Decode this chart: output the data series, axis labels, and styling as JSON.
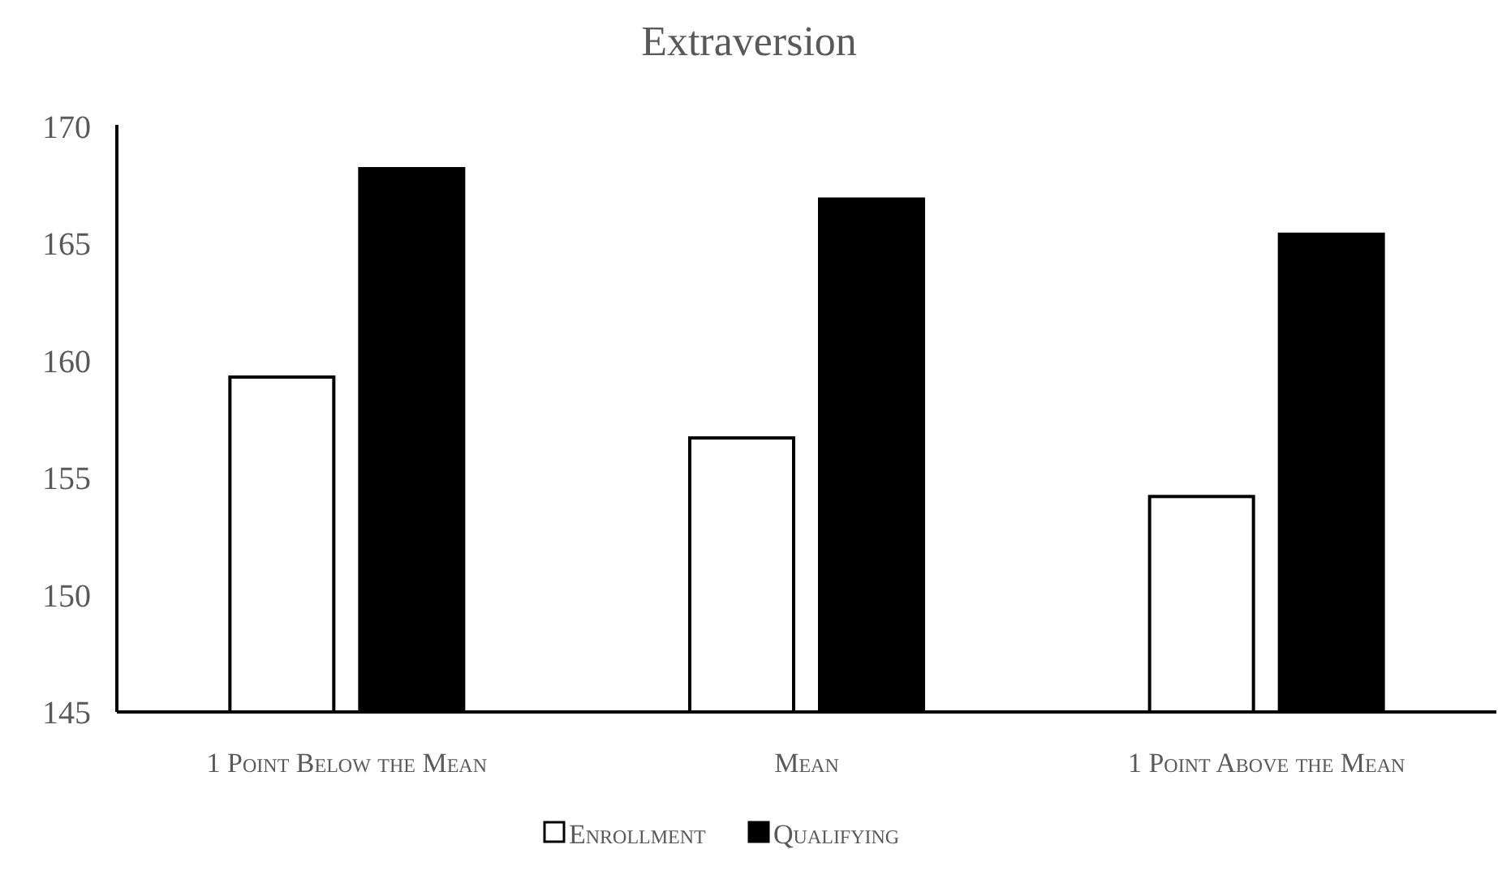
{
  "chart_data": {
    "type": "bar",
    "title": "Extraversion",
    "categories": [
      "1 Point Below the Mean",
      "Mean",
      "1 Point Above the Mean"
    ],
    "series": [
      {
        "name": "Enrollment",
        "color": "#ffffff",
        "values": [
          159.3,
          156.7,
          154.2
        ]
      },
      {
        "name": "Qualifying",
        "color": "#000000",
        "values": [
          168.2,
          166.9,
          165.4
        ]
      }
    ],
    "ylim": [
      145,
      170
    ],
    "yticks": [
      145,
      150,
      155,
      160,
      165,
      170
    ],
    "grid": false,
    "legend": "bottom"
  }
}
